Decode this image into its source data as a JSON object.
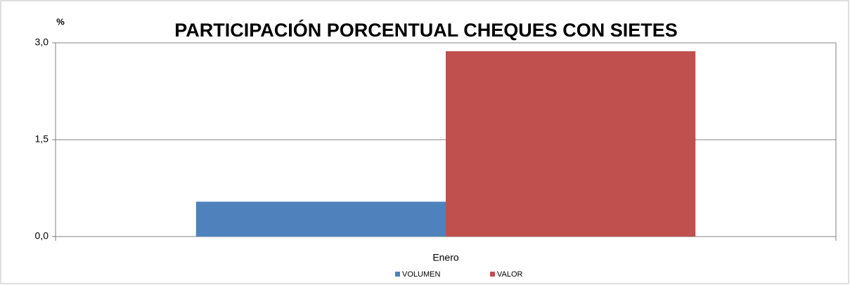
{
  "chart_data": {
    "type": "bar",
    "title": "PARTICIPACIÓN PORCENTUAL CHEQUES CON SIETES",
    "y_label": "%",
    "categories": [
      "Enero"
    ],
    "series": [
      {
        "name": "VOLUMEN",
        "color": "#4f81bd",
        "values": [
          0.54
        ]
      },
      {
        "name": "VALOR",
        "color": "#c0504d",
        "values": [
          2.87
        ]
      }
    ],
    "ylim": [
      0,
      3
    ],
    "yticks": [
      {
        "value": 0,
        "label": "0,0"
      },
      {
        "value": 1.5,
        "label": "1,5"
      },
      {
        "value": 3,
        "label": "3,0"
      }
    ],
    "grid": true,
    "legend": "bottom"
  }
}
